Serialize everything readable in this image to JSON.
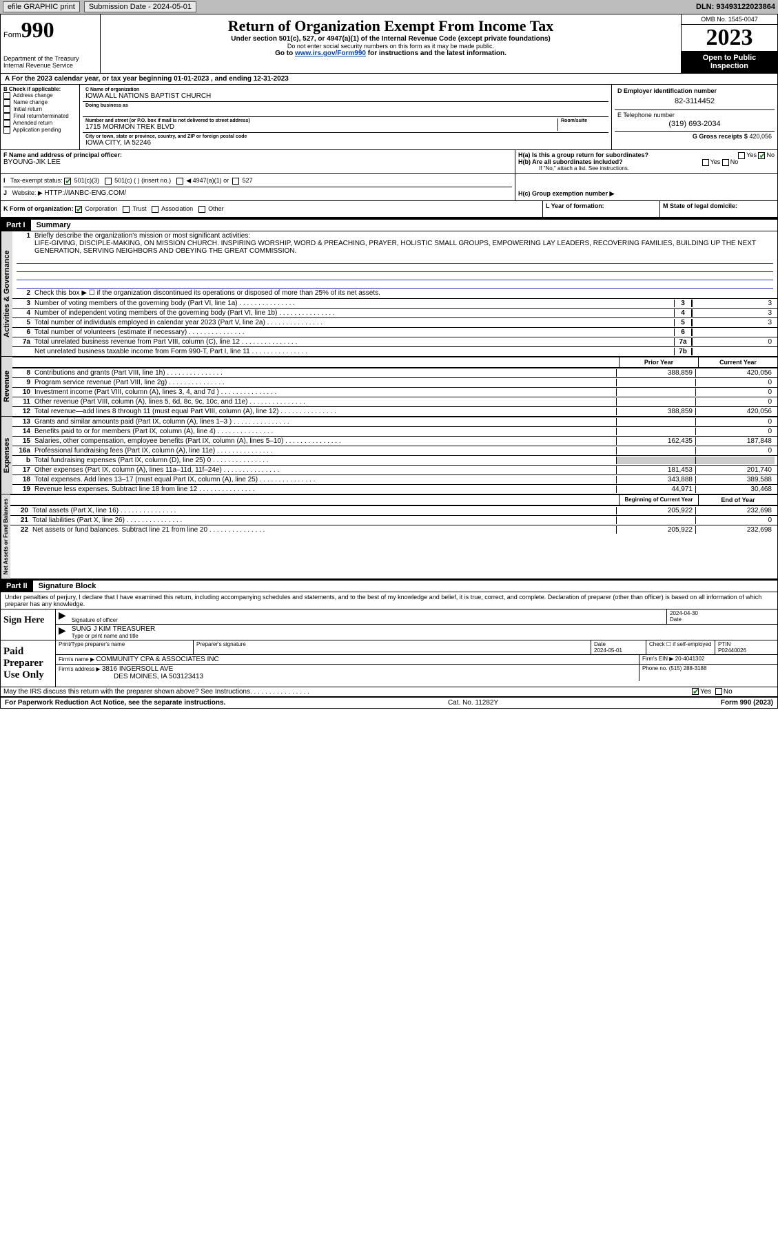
{
  "topbar": {
    "efile": "efile GRAPHIC print",
    "subdate_lbl": "Submission Date - 2024-05-01",
    "dln": "DLN: 93493122023864"
  },
  "header": {
    "form_word": "Form",
    "form_num": "990",
    "dept": "Department of the Treasury",
    "irs": "Internal Revenue Service",
    "title": "Return of Organization Exempt From Income Tax",
    "sub1": "Under section 501(c), 527, or 4947(a)(1) of the Internal Revenue Code (except private foundations)",
    "sub2": "Do not enter social security numbers on this form as it may be made public.",
    "sub3_pre": "Go to ",
    "sub3_link": "www.irs.gov/Form990",
    "sub3_post": " for instructions and the latest information.",
    "omb": "OMB No. 1545-0047",
    "year": "2023",
    "open": "Open to Public Inspection"
  },
  "line_a": "For the 2023 calendar year, or tax year beginning 01-01-2023   , and ending 12-31-2023",
  "box_b": {
    "lbl": "B Check if applicable:",
    "items": [
      "Address change",
      "Name change",
      "Initial return",
      "Final return/terminated",
      "Amended return",
      "Application pending"
    ]
  },
  "box_c": {
    "name_lbl": "C Name of organization",
    "name": "IOWA ALL NATIONS BAPTIST CHURCH",
    "dba_lbl": "Doing business as",
    "addr_lbl": "Number and street (or P.O. box if mail is not delivered to street address)",
    "room_lbl": "Room/suite",
    "addr": "1715 MORMON TREK BLVD",
    "city_lbl": "City or town, state or province, country, and ZIP or foreign postal code",
    "city": "IOWA CITY, IA  52246"
  },
  "box_d": {
    "lbl": "D Employer identification number",
    "val": "82-3114452"
  },
  "box_e": {
    "lbl": "E Telephone number",
    "val": "(319) 693-2034"
  },
  "box_g": {
    "lbl": "G Gross receipts $",
    "val": "420,056"
  },
  "box_f": {
    "lbl": "F Name and address of principal officer:",
    "val": "BYOUNG-JIK LEE"
  },
  "box_h": {
    "ha": "H(a)  Is this a group return for subordinates?",
    "hb": "H(b)  Are all subordinates included?",
    "hb_note": "If \"No,\" attach a list. See instructions.",
    "hc": "H(c)  Group exemption number ▶",
    "yes": "Yes",
    "no": "No"
  },
  "box_i": {
    "lbl": "Tax-exempt status:",
    "c1": "501(c)(3)",
    "c2": "501(c) (  ) (insert no.)",
    "c3": "◀ 4947(a)(1) or",
    "c4": "527"
  },
  "box_j": {
    "lbl": "Website: ▶",
    "val": "HTTP://IANBC-ENG.COM/"
  },
  "box_k": {
    "lbl": "K Form of organization:",
    "opts": [
      "Corporation",
      "Trust",
      "Association",
      "Other"
    ]
  },
  "box_l": "L Year of formation:",
  "box_m": "M State of legal domicile:",
  "part1": {
    "bar": "Part I",
    "title": "Summary"
  },
  "summary": {
    "l1_lbl": "Briefly describe the organization's mission or most significant activities:",
    "l1_txt": "LIFE-GIVING, DISCIPLE-MAKING, ON MISSION CHURCH. INSPIRING WORSHIP, WORD & PREACHING, PRAYER, HOLISTIC SMALL GROUPS, EMPOWERING LAY LEADERS, RECOVERING FAMILIES, BUILDING UP THE NEXT GENERATION, SERVING NEIGHBORS AND OBEYING THE GREAT COMMISSION.",
    "l2": "Check this box ▶ ☐ if the organization discontinued its operations or disposed of more than 25% of its net assets.",
    "lines_single": [
      {
        "n": "3",
        "t": "Number of voting members of the governing body (Part VI, line 1a)",
        "b": "3",
        "v": "3"
      },
      {
        "n": "4",
        "t": "Number of independent voting members of the governing body (Part VI, line 1b)",
        "b": "4",
        "v": "3"
      },
      {
        "n": "5",
        "t": "Total number of individuals employed in calendar year 2023 (Part V, line 2a)",
        "b": "5",
        "v": "3"
      },
      {
        "n": "6",
        "t": "Total number of volunteers (estimate if necessary)",
        "b": "6",
        "v": ""
      },
      {
        "n": "7a",
        "t": "Total unrelated business revenue from Part VIII, column (C), line 12",
        "b": "7a",
        "v": "0"
      },
      {
        "n": "",
        "t": "Net unrelated business taxable income from Form 990-T, Part I, line 11",
        "b": "7b",
        "v": ""
      }
    ],
    "py": "Prior Year",
    "cy": "Current Year",
    "by": "Beginning of Current Year",
    "ey": "End of Year"
  },
  "revenue": [
    {
      "n": "8",
      "t": "Contributions and grants (Part VIII, line 1h)",
      "p": "388,859",
      "c": "420,056"
    },
    {
      "n": "9",
      "t": "Program service revenue (Part VIII, line 2g)",
      "p": "",
      "c": "0"
    },
    {
      "n": "10",
      "t": "Investment income (Part VIII, column (A), lines 3, 4, and 7d )",
      "p": "",
      "c": "0"
    },
    {
      "n": "11",
      "t": "Other revenue (Part VIII, column (A), lines 5, 6d, 8c, 9c, 10c, and 11e)",
      "p": "",
      "c": "0"
    },
    {
      "n": "12",
      "t": "Total revenue—add lines 8 through 11 (must equal Part VIII, column (A), line 12)",
      "p": "388,859",
      "c": "420,056"
    }
  ],
  "expenses": [
    {
      "n": "13",
      "t": "Grants and similar amounts paid (Part IX, column (A), lines 1–3 )",
      "p": "",
      "c": "0"
    },
    {
      "n": "14",
      "t": "Benefits paid to or for members (Part IX, column (A), line 4)",
      "p": "",
      "c": "0"
    },
    {
      "n": "15",
      "t": "Salaries, other compensation, employee benefits (Part IX, column (A), lines 5–10)",
      "p": "162,435",
      "c": "187,848"
    },
    {
      "n": "16a",
      "t": "Professional fundraising fees (Part IX, column (A), line 11e)",
      "p": "",
      "c": "0"
    },
    {
      "n": "b",
      "t": "Total fundraising expenses (Part IX, column (D), line 25) 0",
      "p": "GRAY",
      "c": "GRAY"
    },
    {
      "n": "17",
      "t": "Other expenses (Part IX, column (A), lines 11a–11d, 11f–24e)",
      "p": "181,453",
      "c": "201,740"
    },
    {
      "n": "18",
      "t": "Total expenses. Add lines 13–17 (must equal Part IX, column (A), line 25)",
      "p": "343,888",
      "c": "389,588"
    },
    {
      "n": "19",
      "t": "Revenue less expenses. Subtract line 18 from line 12",
      "p": "44,971",
      "c": "30,468"
    }
  ],
  "netassets": [
    {
      "n": "20",
      "t": "Total assets (Part X, line 16)",
      "p": "205,922",
      "c": "232,698"
    },
    {
      "n": "21",
      "t": "Total liabilities (Part X, line 26)",
      "p": "",
      "c": "0"
    },
    {
      "n": "22",
      "t": "Net assets or fund balances. Subtract line 21 from line 20",
      "p": "205,922",
      "c": "232,698"
    }
  ],
  "tabs": {
    "ag": "Activities & Governance",
    "rev": "Revenue",
    "exp": "Expenses",
    "na": "Net Assets or Fund Balances"
  },
  "part2": {
    "bar": "Part II",
    "title": "Signature Block",
    "decl": "Under penalties of perjury, I declare that I have examined this return, including accompanying schedules and statements, and to the best of my knowledge and belief, it is true, correct, and complete. Declaration of preparer (other than officer) is based on all information of which preparer has any knowledge."
  },
  "sign": {
    "here": "Sign Here",
    "sig_lbl": "Signature of officer",
    "date_lbl": "Date",
    "date": "2024-04-30",
    "name": "SUNG J KIM  TREASURER",
    "name_lbl": "Type or print name and title"
  },
  "paid": {
    "lbl": "Paid Preparer Use Only",
    "h1": "Print/Type preparer's name",
    "h2": "Preparer's signature",
    "h3": "Date",
    "h4": "Check ☐ if self-employed",
    "h5": "PTIN",
    "date": "2024-05-01",
    "ptin": "P02440026",
    "firm_lbl": "Firm's name    ▶",
    "firm": "COMMUNITY CPA & ASSOCIATES INC",
    "ein_lbl": "Firm's EIN ▶",
    "ein": "20-4041302",
    "addr_lbl": "Firm's address ▶",
    "addr1": "3816 INGERSOLL AVE",
    "addr2": "DES MOINES, IA  503123413",
    "phone_lbl": "Phone no.",
    "phone": "(515) 288-3188"
  },
  "discuss": "May the IRS discuss this return with the preparer shown above? See Instructions.",
  "footer": {
    "pra": "For Paperwork Reduction Act Notice, see the separate instructions.",
    "cat": "Cat. No. 11282Y",
    "form": "Form 990 (2023)"
  }
}
